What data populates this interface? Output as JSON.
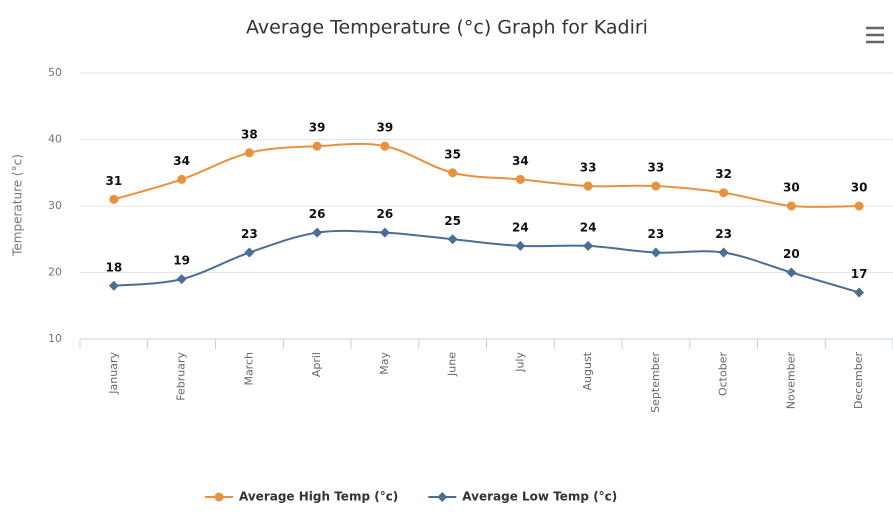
{
  "chart_data": {
    "type": "line",
    "title": "Average Temperature (°c) Graph for Kadiri",
    "y_label": "Temperature (°c)",
    "categories": [
      "January",
      "February",
      "March",
      "April",
      "May",
      "June",
      "July",
      "August",
      "September",
      "October",
      "November",
      "December"
    ],
    "series": [
      {
        "name": "Average High Temp (°c)",
        "color": "#e8913f",
        "marker": "circle",
        "values": [
          31,
          34,
          38,
          39,
          39,
          35,
          34,
          33,
          33,
          32,
          30,
          30
        ]
      },
      {
        "name": "Average Low Temp (°c)",
        "color": "#4a6f96",
        "marker": "diamond",
        "values": [
          18,
          19,
          23,
          26,
          26,
          25,
          24,
          24,
          23,
          23,
          20,
          17
        ]
      }
    ],
    "ylim": [
      10,
      50
    ],
    "yticks": [
      10,
      20,
      30,
      40,
      50
    ],
    "grid": true,
    "legend": "bottom"
  }
}
